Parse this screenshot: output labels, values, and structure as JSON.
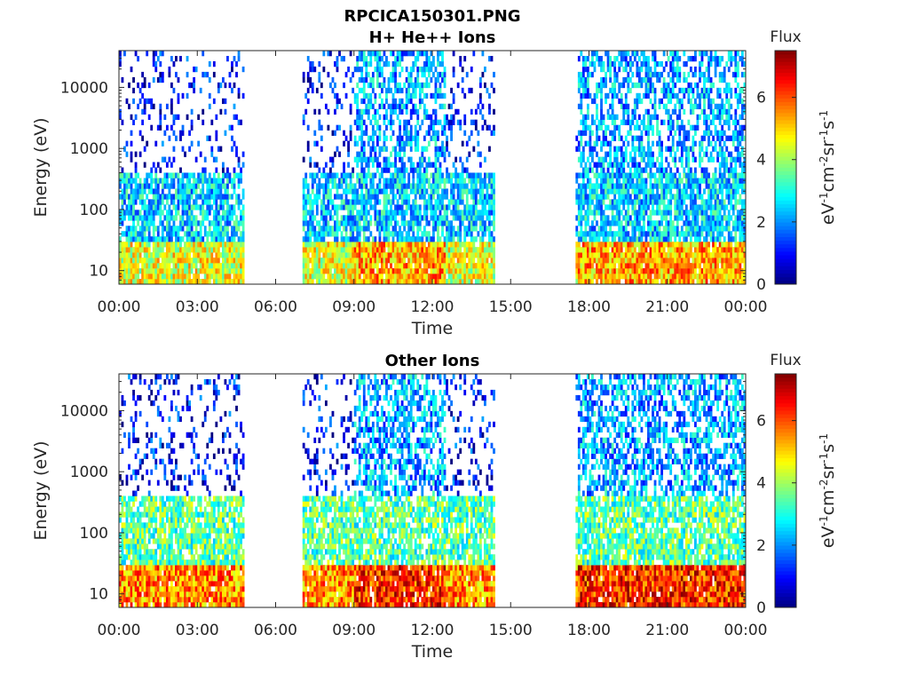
{
  "figure": {
    "title_line1": "RPCICA150301.PNG"
  },
  "chart_data": [
    {
      "type": "heatmap",
      "title": "H+ He++ Ions",
      "xlabel": "Time",
      "ylabel": "Energy (eV)",
      "y_scale": "log",
      "ylim": [
        6,
        40000
      ],
      "x_range_hours": [
        0,
        24
      ],
      "x_ticks": [
        "00:00",
        "03:00",
        "06:00",
        "09:00",
        "12:00",
        "15:00",
        "18:00",
        "21:00",
        "00:00"
      ],
      "y_ticks": [
        {
          "value": 10,
          "label": "10"
        },
        {
          "value": 100,
          "label": "100"
        },
        {
          "value": 1000,
          "label": "1000"
        },
        {
          "value": 10000,
          "label": "10000"
        }
      ],
      "colorbar": {
        "title": "Flux",
        "unit_label": "eV-1cm-2sr-1s-1",
        "range": [
          0,
          7.5
        ],
        "ticks": [
          0,
          2,
          4,
          6
        ],
        "colormap": "jet"
      },
      "data_intervals_hours": [
        [
          0.0,
          4.8
        ],
        [
          7.0,
          14.4
        ],
        [
          17.5,
          24.0
        ]
      ],
      "grid": false,
      "notes_flux_levels": {
        "low_energy_10_30eV": 4.5,
        "mid_energy_100_300eV": 2.5,
        "high_energy_above_1000eV": 1.0
      }
    },
    {
      "type": "heatmap",
      "title": "Other Ions",
      "xlabel": "Time",
      "ylabel": "Energy (eV)",
      "y_scale": "log",
      "ylim": [
        6,
        40000
      ],
      "x_range_hours": [
        0,
        24
      ],
      "x_ticks": [
        "00:00",
        "03:00",
        "06:00",
        "09:00",
        "12:00",
        "15:00",
        "18:00",
        "21:00",
        "00:00"
      ],
      "y_ticks": [
        {
          "value": 10,
          "label": "10"
        },
        {
          "value": 100,
          "label": "100"
        },
        {
          "value": 1000,
          "label": "1000"
        },
        {
          "value": 10000,
          "label": "10000"
        }
      ],
      "colorbar": {
        "title": "Flux",
        "unit_label": "eV-1cm-2sr-1s-1",
        "range": [
          0,
          7.5
        ],
        "ticks": [
          0,
          2,
          4,
          6
        ],
        "colormap": "jet"
      },
      "data_intervals_hours": [
        [
          0.0,
          4.8
        ],
        [
          7.0,
          14.4
        ],
        [
          17.5,
          24.0
        ]
      ],
      "grid": false,
      "notes_flux_levels": {
        "low_energy_10_30eV": 5.5,
        "mid_energy_100_300eV": 3.5,
        "high_energy_above_1000eV": 1.0
      }
    }
  ]
}
